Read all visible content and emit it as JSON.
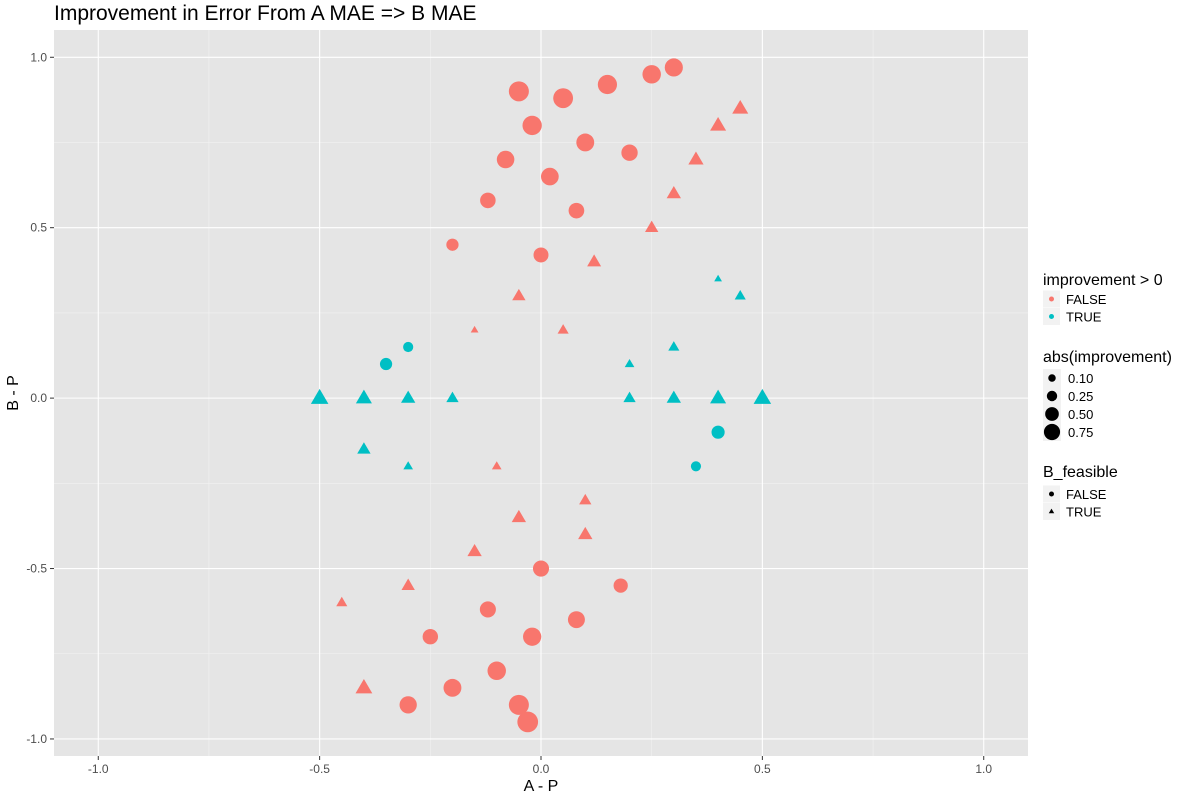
{
  "chart_data": {
    "type": "scatter",
    "title": "Improvement in Error From A MAE => B MAE",
    "xlabel": "A - P",
    "ylabel": "B - P",
    "xlim": [
      -1.1,
      1.1
    ],
    "ylim": [
      -1.05,
      1.08
    ],
    "x_ticks": [
      -1.0,
      -0.5,
      0.0,
      0.5,
      1.0
    ],
    "x_tick_labels": [
      "-1.0",
      "-0.5",
      "0.0",
      "0.5",
      "1.0"
    ],
    "y_ticks": [
      -1.0,
      -0.5,
      0.0,
      0.5,
      1.0
    ],
    "y_tick_labels": [
      "-1.0",
      "-0.5",
      "0.0",
      "0.5",
      "1.0"
    ],
    "grid": true,
    "background": "#e5e5e5",
    "legend_placement": "right",
    "colors": {
      "FALSE": "#f8766d",
      "TRUE": "#00bfc4"
    },
    "legends": {
      "color": {
        "title": "improvement > 0",
        "entries": [
          "FALSE",
          "TRUE"
        ]
      },
      "size": {
        "title": "abs(improvement)",
        "entries": [
          "0.10",
          "0.25",
          "0.50",
          "0.75"
        ],
        "values": [
          0.1,
          0.25,
          0.5,
          0.75
        ]
      },
      "shape": {
        "title": "B_feasible",
        "entries": [
          "FALSE",
          "TRUE"
        ],
        "shapes": [
          "circle",
          "triangle"
        ]
      }
    },
    "points": [
      {
        "x": 0.3,
        "y": 0.97,
        "improvement_positive": false,
        "abs_improvement": 0.67,
        "b_feasible": false
      },
      {
        "x": 0.25,
        "y": 0.95,
        "improvement_positive": false,
        "abs_improvement": 0.7,
        "b_feasible": false
      },
      {
        "x": 0.15,
        "y": 0.92,
        "improvement_positive": false,
        "abs_improvement": 0.77,
        "b_feasible": false
      },
      {
        "x": -0.05,
        "y": 0.9,
        "improvement_positive": false,
        "abs_improvement": 0.85,
        "b_feasible": false
      },
      {
        "x": 0.05,
        "y": 0.88,
        "improvement_positive": false,
        "abs_improvement": 0.83,
        "b_feasible": false
      },
      {
        "x": -0.02,
        "y": 0.8,
        "improvement_positive": false,
        "abs_improvement": 0.78,
        "b_feasible": false
      },
      {
        "x": 0.1,
        "y": 0.75,
        "improvement_positive": false,
        "abs_improvement": 0.65,
        "b_feasible": false
      },
      {
        "x": -0.08,
        "y": 0.7,
        "improvement_positive": false,
        "abs_improvement": 0.62,
        "b_feasible": false
      },
      {
        "x": 0.02,
        "y": 0.65,
        "improvement_positive": false,
        "abs_improvement": 0.63,
        "b_feasible": false
      },
      {
        "x": 0.2,
        "y": 0.72,
        "improvement_positive": false,
        "abs_improvement": 0.52,
        "b_feasible": false
      },
      {
        "x": -0.12,
        "y": 0.58,
        "improvement_positive": false,
        "abs_improvement": 0.46,
        "b_feasible": false
      },
      {
        "x": 0.08,
        "y": 0.55,
        "improvement_positive": false,
        "abs_improvement": 0.47,
        "b_feasible": false
      },
      {
        "x": -0.2,
        "y": 0.45,
        "improvement_positive": false,
        "abs_improvement": 0.25,
        "b_feasible": false
      },
      {
        "x": 0.0,
        "y": 0.42,
        "improvement_positive": false,
        "abs_improvement": 0.42,
        "b_feasible": false
      },
      {
        "x": 0.12,
        "y": 0.4,
        "improvement_positive": false,
        "abs_improvement": 0.28,
        "b_feasible": true
      },
      {
        "x": 0.3,
        "y": 0.6,
        "improvement_positive": false,
        "abs_improvement": 0.3,
        "b_feasible": true
      },
      {
        "x": 0.4,
        "y": 0.8,
        "improvement_positive": false,
        "abs_improvement": 0.4,
        "b_feasible": true
      },
      {
        "x": 0.45,
        "y": 0.85,
        "improvement_positive": false,
        "abs_improvement": 0.4,
        "b_feasible": true
      },
      {
        "x": 0.35,
        "y": 0.7,
        "improvement_positive": false,
        "abs_improvement": 0.35,
        "b_feasible": true
      },
      {
        "x": 0.25,
        "y": 0.5,
        "improvement_positive": false,
        "abs_improvement": 0.25,
        "b_feasible": true
      },
      {
        "x": -0.05,
        "y": 0.3,
        "improvement_positive": false,
        "abs_improvement": 0.25,
        "b_feasible": true
      },
      {
        "x": -0.15,
        "y": 0.2,
        "improvement_positive": false,
        "abs_improvement": 0.05,
        "b_feasible": true
      },
      {
        "x": 0.05,
        "y": 0.2,
        "improvement_positive": false,
        "abs_improvement": 0.15,
        "b_feasible": true
      },
      {
        "x": 0.4,
        "y": 0.35,
        "improvement_positive": true,
        "abs_improvement": 0.05,
        "b_feasible": true
      },
      {
        "x": 0.45,
        "y": 0.3,
        "improvement_positive": true,
        "abs_improvement": 0.15,
        "b_feasible": true
      },
      {
        "x": -0.35,
        "y": 0.1,
        "improvement_positive": true,
        "abs_improvement": 0.25,
        "b_feasible": false
      },
      {
        "x": -0.3,
        "y": 0.15,
        "improvement_positive": true,
        "abs_improvement": 0.15,
        "b_feasible": false
      },
      {
        "x": 0.4,
        "y": -0.1,
        "improvement_positive": true,
        "abs_improvement": 0.3,
        "b_feasible": false
      },
      {
        "x": 0.35,
        "y": -0.2,
        "improvement_positive": true,
        "abs_improvement": 0.15,
        "b_feasible": false
      },
      {
        "x": -0.5,
        "y": 0.0,
        "improvement_positive": true,
        "abs_improvement": 0.5,
        "b_feasible": true
      },
      {
        "x": -0.4,
        "y": 0.0,
        "improvement_positive": true,
        "abs_improvement": 0.4,
        "b_feasible": true
      },
      {
        "x": -0.3,
        "y": 0.0,
        "improvement_positive": true,
        "abs_improvement": 0.3,
        "b_feasible": true
      },
      {
        "x": -0.2,
        "y": 0.0,
        "improvement_positive": true,
        "abs_improvement": 0.2,
        "b_feasible": true
      },
      {
        "x": 0.2,
        "y": 0.0,
        "improvement_positive": true,
        "abs_improvement": 0.2,
        "b_feasible": true
      },
      {
        "x": 0.3,
        "y": 0.0,
        "improvement_positive": true,
        "abs_improvement": 0.3,
        "b_feasible": true
      },
      {
        "x": 0.4,
        "y": 0.0,
        "improvement_positive": true,
        "abs_improvement": 0.4,
        "b_feasible": true
      },
      {
        "x": 0.5,
        "y": 0.0,
        "improvement_positive": true,
        "abs_improvement": 0.5,
        "b_feasible": true
      },
      {
        "x": -0.4,
        "y": -0.15,
        "improvement_positive": true,
        "abs_improvement": 0.25,
        "b_feasible": true
      },
      {
        "x": -0.3,
        "y": -0.2,
        "improvement_positive": true,
        "abs_improvement": 0.1,
        "b_feasible": true
      },
      {
        "x": 0.3,
        "y": 0.15,
        "improvement_positive": true,
        "abs_improvement": 0.15,
        "b_feasible": true
      },
      {
        "x": 0.2,
        "y": 0.1,
        "improvement_positive": true,
        "abs_improvement": 0.1,
        "b_feasible": true
      },
      {
        "x": 0.1,
        "y": -0.4,
        "improvement_positive": false,
        "abs_improvement": 0.3,
        "b_feasible": true
      },
      {
        "x": -0.05,
        "y": -0.35,
        "improvement_positive": false,
        "abs_improvement": 0.3,
        "b_feasible": true
      },
      {
        "x": -0.15,
        "y": -0.45,
        "improvement_positive": false,
        "abs_improvement": 0.3,
        "b_feasible": true
      },
      {
        "x": -0.3,
        "y": -0.55,
        "improvement_positive": false,
        "abs_improvement": 0.25,
        "b_feasible": true
      },
      {
        "x": -0.45,
        "y": -0.6,
        "improvement_positive": false,
        "abs_improvement": 0.15,
        "b_feasible": true
      },
      {
        "x": -0.4,
        "y": -0.85,
        "improvement_positive": false,
        "abs_improvement": 0.45,
        "b_feasible": true
      },
      {
        "x": -0.3,
        "y": -0.9,
        "improvement_positive": false,
        "abs_improvement": 0.6,
        "b_feasible": false
      },
      {
        "x": -0.2,
        "y": -0.85,
        "improvement_positive": false,
        "abs_improvement": 0.65,
        "b_feasible": false
      },
      {
        "x": -0.1,
        "y": -0.8,
        "improvement_positive": false,
        "abs_improvement": 0.7,
        "b_feasible": false
      },
      {
        "x": -0.02,
        "y": -0.7,
        "improvement_positive": false,
        "abs_improvement": 0.68,
        "b_feasible": false
      },
      {
        "x": 0.08,
        "y": -0.65,
        "improvement_positive": false,
        "abs_improvement": 0.57,
        "b_feasible": false
      },
      {
        "x": -0.05,
        "y": -0.9,
        "improvement_positive": false,
        "abs_improvement": 0.85,
        "b_feasible": false
      },
      {
        "x": -0.03,
        "y": -0.95,
        "improvement_positive": false,
        "abs_improvement": 0.92,
        "b_feasible": false
      },
      {
        "x": 0.18,
        "y": -0.55,
        "improvement_positive": false,
        "abs_improvement": 0.37,
        "b_feasible": false
      },
      {
        "x": -0.12,
        "y": -0.62,
        "improvement_positive": false,
        "abs_improvement": 0.5,
        "b_feasible": false
      },
      {
        "x": 0.0,
        "y": -0.5,
        "improvement_positive": false,
        "abs_improvement": 0.5,
        "b_feasible": false
      },
      {
        "x": -0.25,
        "y": -0.7,
        "improvement_positive": false,
        "abs_improvement": 0.45,
        "b_feasible": false
      },
      {
        "x": 0.1,
        "y": -0.3,
        "improvement_positive": false,
        "abs_improvement": 0.2,
        "b_feasible": true
      },
      {
        "x": -0.1,
        "y": -0.2,
        "improvement_positive": false,
        "abs_improvement": 0.1,
        "b_feasible": true
      }
    ]
  }
}
